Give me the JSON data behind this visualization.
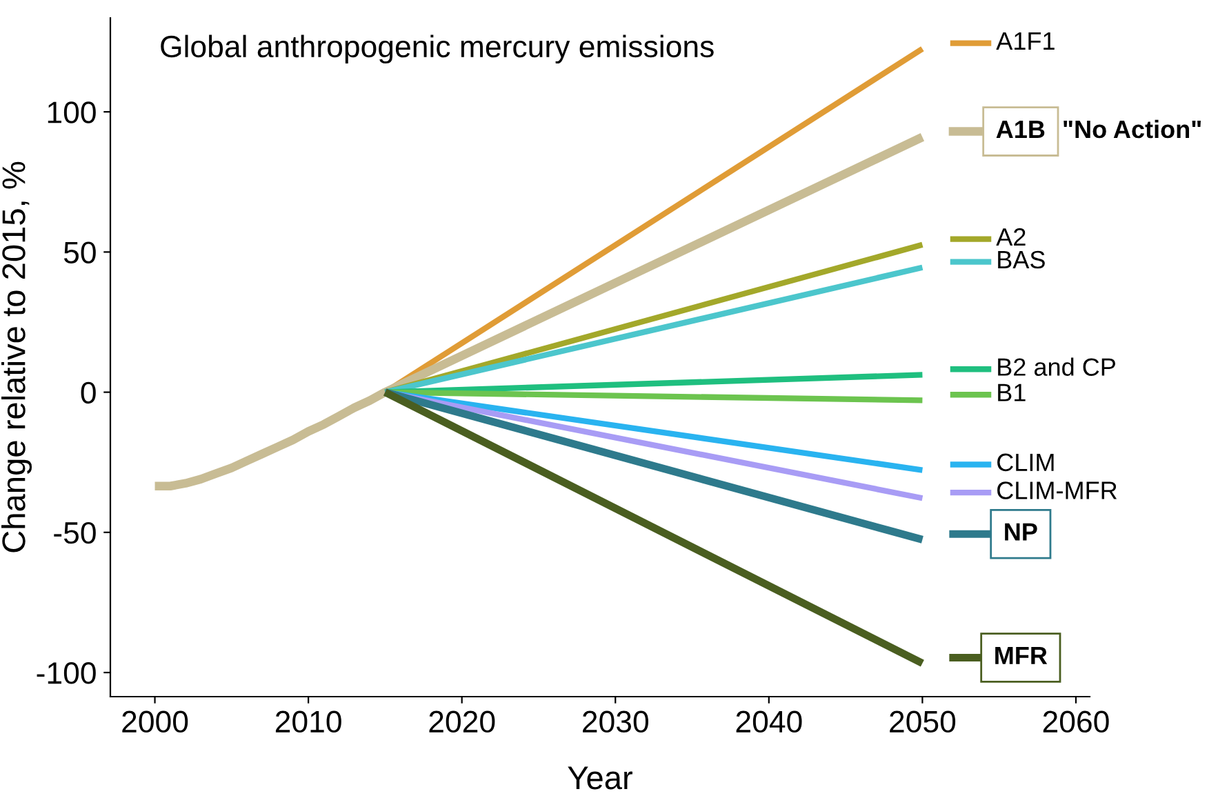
{
  "chart_data": {
    "type": "line",
    "title": "Global anthropogenic mercury emissions",
    "xlabel": "Year",
    "ylabel": "Change relative to 2015, %",
    "xlim": [
      1997.1,
      2060.9
    ],
    "ylim": [
      -108.6,
      133.5
    ],
    "xticks": [
      2000,
      2010,
      2020,
      2030,
      2040,
      2050,
      2060
    ],
    "yticks": [
      -100,
      -50,
      0,
      50,
      100
    ],
    "grid": false,
    "legend": "right",
    "marker": "none",
    "line_style": "solid",
    "annotations": [
      "\"No Action\""
    ],
    "series": [
      {
        "name": "A1F1",
        "color": "#e09c36",
        "x": [
          2015,
          2050
        ],
        "values": [
          0,
          122.5
        ]
      },
      {
        "name": "A1B",
        "color": "#c8bc94",
        "x": [
          2000,
          2001,
          2002,
          2003,
          2004,
          2005,
          2006,
          2007,
          2008,
          2009,
          2010,
          2011,
          2012,
          2013,
          2014,
          2015,
          2050
        ],
        "values": [
          -33.5,
          -33.5,
          -32.5,
          -31,
          -29,
          -27,
          -24.5,
          -22,
          -19.5,
          -17,
          -14,
          -11.5,
          -8.5,
          -5.5,
          -3,
          0,
          91
        ]
      },
      {
        "name": "A2",
        "color": "#a3a82a",
        "x": [
          2015,
          2050
        ],
        "values": [
          0,
          52.6
        ]
      },
      {
        "name": "BAS",
        "color": "#4cc6cc",
        "x": [
          2015,
          2050
        ],
        "values": [
          0,
          44.5
        ]
      },
      {
        "name": "B2 and CP",
        "color": "#1fbf7f",
        "x": [
          2015,
          2050
        ],
        "values": [
          0,
          6.2
        ]
      },
      {
        "name": "B1",
        "color": "#6cc44f",
        "x": [
          2015,
          2050
        ],
        "values": [
          0,
          -2.9
        ]
      },
      {
        "name": "CLIM",
        "color": "#29b3f0",
        "x": [
          2015,
          2050
        ],
        "values": [
          0,
          -27.8
        ]
      },
      {
        "name": "CLIM-MFR",
        "color": "#a89cf5",
        "x": [
          2015,
          2050
        ],
        "values": [
          0,
          -37.8
        ]
      },
      {
        "name": "NP",
        "color": "#2e7a8c",
        "x": [
          2015,
          2050
        ],
        "values": [
          0,
          -52.6
        ]
      },
      {
        "name": "MFR",
        "color": "#4a5e20",
        "x": [
          2015,
          2050
        ],
        "values": [
          0,
          -96.7
        ]
      }
    ]
  }
}
